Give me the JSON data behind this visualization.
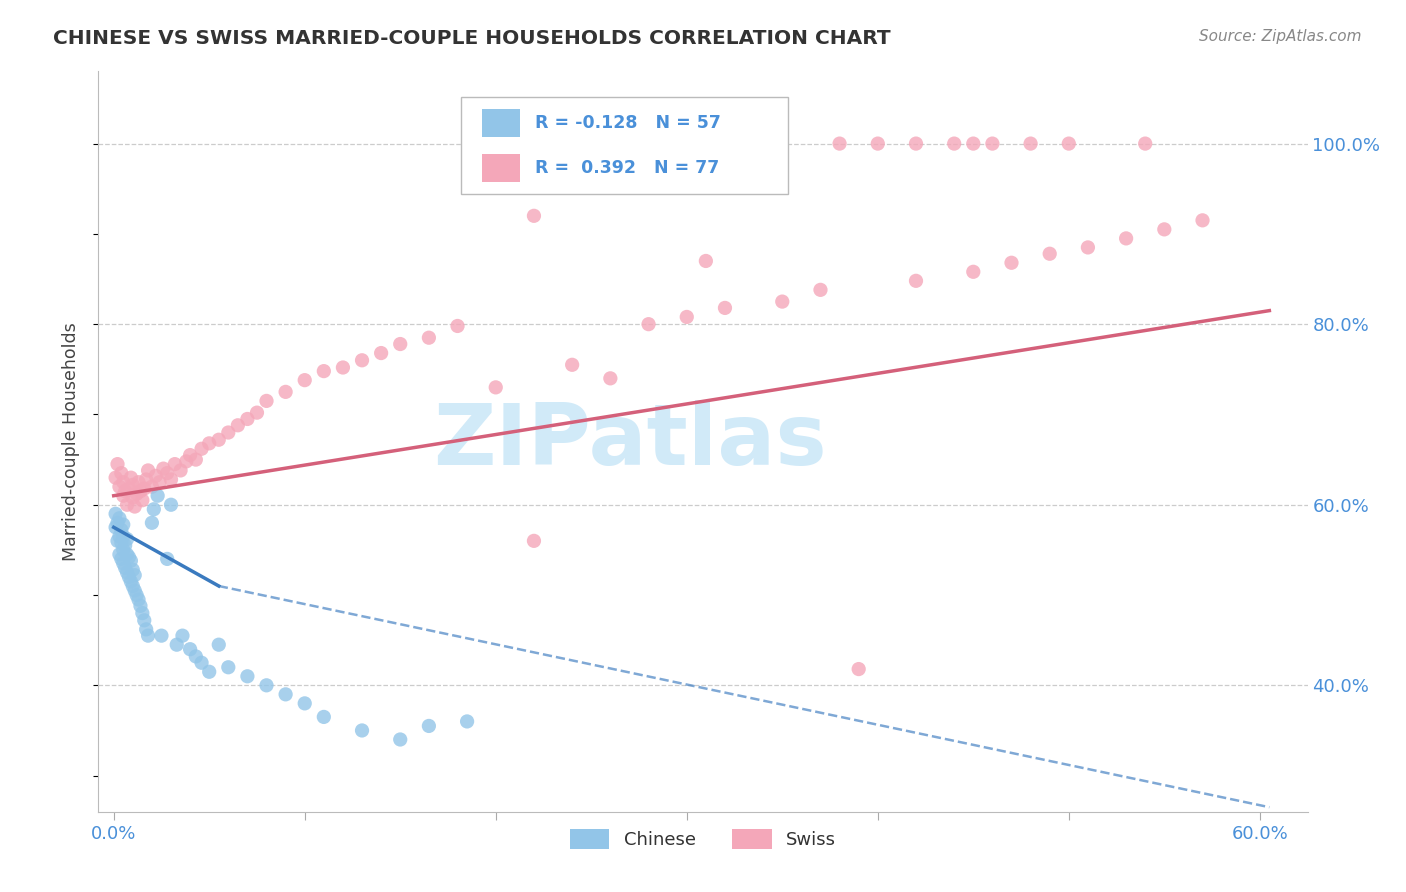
{
  "title": "CHINESE VS SWISS MARRIED-COUPLE HOUSEHOLDS CORRELATION CHART",
  "source": "Source: ZipAtlas.com",
  "ylabel": "Married-couple Households",
  "legend_chinese": "Chinese",
  "legend_swiss": "Swiss",
  "r_chinese": -0.128,
  "n_chinese": 57,
  "r_swiss": 0.392,
  "n_swiss": 77,
  "color_chinese": "#92C5E8",
  "color_swiss": "#F4A7B9",
  "line_color_chinese": "#3a7abf",
  "line_color_swiss": "#d4607a",
  "watermark_text": "ZIPatlas",
  "watermark_color": "#cce8f8",
  "tick_color": "#4a90d9",
  "title_color": "#333333",
  "source_color": "#888888",
  "grid_color": "#cccccc",
  "bg_color": "#ffffff",
  "xlim_min": -0.008,
  "xlim_max": 0.625,
  "ylim_min": 0.26,
  "ylim_max": 1.08,
  "xticks": [
    0.0,
    0.1,
    0.2,
    0.3,
    0.4,
    0.5,
    0.6
  ],
  "xtick_labels": [
    "0.0%",
    "",
    "",
    "",
    "",
    "",
    "60.0%"
  ],
  "yticks": [
    0.4,
    0.6,
    0.8,
    1.0
  ],
  "ytick_labels": [
    "40.0%",
    "60.0%",
    "80.0%",
    "100.0%"
  ],
  "chinese_x": [
    0.001,
    0.001,
    0.002,
    0.002,
    0.003,
    0.003,
    0.003,
    0.004,
    0.004,
    0.004,
    0.005,
    0.005,
    0.005,
    0.005,
    0.006,
    0.006,
    0.007,
    0.007,
    0.007,
    0.008,
    0.008,
    0.009,
    0.009,
    0.01,
    0.01,
    0.011,
    0.011,
    0.012,
    0.013,
    0.014,
    0.015,
    0.016,
    0.017,
    0.018,
    0.02,
    0.021,
    0.023,
    0.025,
    0.028,
    0.03,
    0.033,
    0.036,
    0.04,
    0.043,
    0.046,
    0.05,
    0.055,
    0.06,
    0.07,
    0.08,
    0.09,
    0.1,
    0.11,
    0.13,
    0.15,
    0.165,
    0.185
  ],
  "chinese_y": [
    0.575,
    0.59,
    0.56,
    0.58,
    0.545,
    0.565,
    0.585,
    0.54,
    0.558,
    0.572,
    0.535,
    0.55,
    0.565,
    0.578,
    0.53,
    0.555,
    0.525,
    0.545,
    0.562,
    0.52,
    0.542,
    0.515,
    0.538,
    0.51,
    0.528,
    0.505,
    0.522,
    0.5,
    0.495,
    0.488,
    0.48,
    0.472,
    0.462,
    0.455,
    0.58,
    0.595,
    0.61,
    0.455,
    0.54,
    0.6,
    0.445,
    0.455,
    0.44,
    0.432,
    0.425,
    0.415,
    0.445,
    0.42,
    0.41,
    0.4,
    0.39,
    0.38,
    0.365,
    0.35,
    0.34,
    0.355,
    0.36
  ],
  "swiss_x": [
    0.001,
    0.002,
    0.003,
    0.004,
    0.005,
    0.005,
    0.006,
    0.007,
    0.008,
    0.009,
    0.01,
    0.01,
    0.011,
    0.012,
    0.013,
    0.014,
    0.015,
    0.016,
    0.017,
    0.018,
    0.02,
    0.022,
    0.024,
    0.026,
    0.028,
    0.03,
    0.032,
    0.035,
    0.038,
    0.04,
    0.043,
    0.046,
    0.05,
    0.055,
    0.06,
    0.065,
    0.07,
    0.075,
    0.08,
    0.09,
    0.1,
    0.11,
    0.12,
    0.13,
    0.14,
    0.15,
    0.165,
    0.18,
    0.2,
    0.22,
    0.24,
    0.26,
    0.28,
    0.3,
    0.32,
    0.35,
    0.37,
    0.39,
    0.42,
    0.45,
    0.47,
    0.49,
    0.51,
    0.53,
    0.55,
    0.57,
    0.22,
    0.31,
    0.38,
    0.4,
    0.42,
    0.44,
    0.45,
    0.46,
    0.48,
    0.5,
    0.54
  ],
  "swiss_y": [
    0.63,
    0.645,
    0.62,
    0.635,
    0.61,
    0.625,
    0.615,
    0.6,
    0.618,
    0.63,
    0.608,
    0.622,
    0.598,
    0.612,
    0.625,
    0.615,
    0.605,
    0.618,
    0.628,
    0.638,
    0.62,
    0.632,
    0.625,
    0.64,
    0.635,
    0.628,
    0.645,
    0.638,
    0.648,
    0.655,
    0.65,
    0.662,
    0.668,
    0.672,
    0.68,
    0.688,
    0.695,
    0.702,
    0.715,
    0.725,
    0.738,
    0.748,
    0.752,
    0.76,
    0.768,
    0.778,
    0.785,
    0.798,
    0.73,
    0.56,
    0.755,
    0.74,
    0.8,
    0.808,
    0.818,
    0.825,
    0.838,
    0.418,
    0.848,
    0.858,
    0.868,
    0.878,
    0.885,
    0.895,
    0.905,
    0.915,
    0.92,
    0.87,
    1.0,
    1.0,
    1.0,
    1.0,
    1.0,
    1.0,
    1.0,
    1.0,
    1.0
  ]
}
